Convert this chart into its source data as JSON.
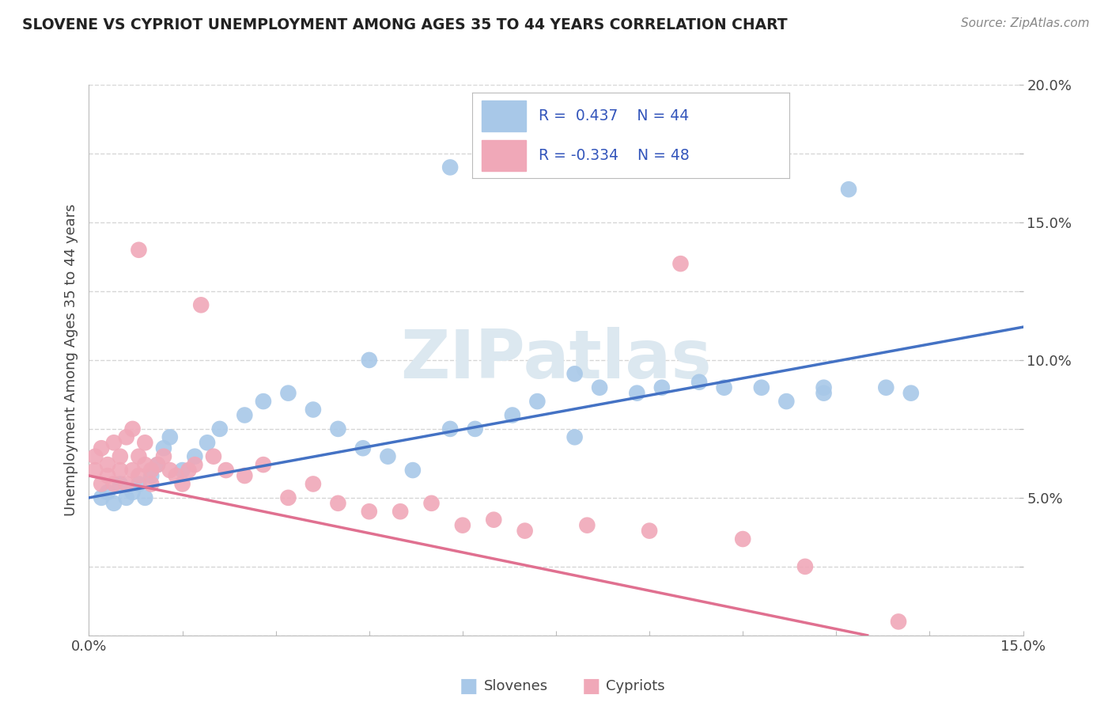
{
  "title": "SLOVENE VS CYPRIOT UNEMPLOYMENT AMONG AGES 35 TO 44 YEARS CORRELATION CHART",
  "source": "Source: ZipAtlas.com",
  "xlabel": "",
  "ylabel": "Unemployment Among Ages 35 to 44 years",
  "xlim": [
    0.0,
    0.15
  ],
  "ylim": [
    0.0,
    0.2
  ],
  "xticks": [
    0.0,
    0.015,
    0.03,
    0.045,
    0.06,
    0.075,
    0.09,
    0.105,
    0.12,
    0.135,
    0.15
  ],
  "xtick_labels": [
    "0.0%",
    "",
    "",
    "",
    "",
    "",
    "",
    "",
    "",
    "",
    "15.0%"
  ],
  "yticks": [
    0.0,
    0.025,
    0.05,
    0.075,
    0.1,
    0.125,
    0.15,
    0.175,
    0.2
  ],
  "ytick_labels": [
    "",
    "",
    "5.0%",
    "",
    "10.0%",
    "",
    "15.0%",
    "",
    "20.0%"
  ],
  "slovene_R": 0.437,
  "slovene_N": 44,
  "cypriot_R": -0.334,
  "cypriot_N": 48,
  "slovene_color": "#a8c8e8",
  "cypriot_color": "#f0a8b8",
  "slovene_line_color": "#4472c4",
  "cypriot_line_color": "#e07090",
  "watermark_text": "ZIPatlas",
  "watermark_color": "#dce8f0",
  "slovenes_x": [
    0.002,
    0.003,
    0.004,
    0.005,
    0.006,
    0.007,
    0.008,
    0.009,
    0.01,
    0.011,
    0.012,
    0.013,
    0.015,
    0.017,
    0.019,
    0.021,
    0.025,
    0.028,
    0.032,
    0.036,
    0.04,
    0.044,
    0.048,
    0.052,
    0.058,
    0.062,
    0.068,
    0.072,
    0.078,
    0.082,
    0.088,
    0.092,
    0.098,
    0.102,
    0.108,
    0.112,
    0.118,
    0.122,
    0.128,
    0.132,
    0.058,
    0.118,
    0.045,
    0.078
  ],
  "slovenes_y": [
    0.05,
    0.052,
    0.048,
    0.055,
    0.05,
    0.052,
    0.055,
    0.05,
    0.058,
    0.062,
    0.068,
    0.072,
    0.06,
    0.065,
    0.07,
    0.075,
    0.08,
    0.085,
    0.088,
    0.082,
    0.075,
    0.068,
    0.065,
    0.06,
    0.17,
    0.075,
    0.08,
    0.085,
    0.072,
    0.09,
    0.088,
    0.09,
    0.092,
    0.09,
    0.09,
    0.085,
    0.088,
    0.162,
    0.09,
    0.088,
    0.075,
    0.09,
    0.1,
    0.095
  ],
  "cypriots_x": [
    0.001,
    0.001,
    0.002,
    0.002,
    0.003,
    0.003,
    0.004,
    0.004,
    0.005,
    0.005,
    0.006,
    0.006,
    0.007,
    0.007,
    0.008,
    0.008,
    0.009,
    0.009,
    0.01,
    0.01,
    0.011,
    0.012,
    0.013,
    0.014,
    0.015,
    0.016,
    0.017,
    0.018,
    0.02,
    0.022,
    0.025,
    0.028,
    0.032,
    0.036,
    0.04,
    0.045,
    0.05,
    0.055,
    0.06,
    0.065,
    0.07,
    0.08,
    0.09,
    0.095,
    0.105,
    0.115,
    0.13,
    0.008
  ],
  "cypriots_y": [
    0.06,
    0.065,
    0.055,
    0.068,
    0.058,
    0.062,
    0.055,
    0.07,
    0.06,
    0.065,
    0.055,
    0.072,
    0.06,
    0.075,
    0.058,
    0.065,
    0.062,
    0.07,
    0.055,
    0.06,
    0.062,
    0.065,
    0.06,
    0.058,
    0.055,
    0.06,
    0.062,
    0.12,
    0.065,
    0.06,
    0.058,
    0.062,
    0.05,
    0.055,
    0.048,
    0.045,
    0.045,
    0.048,
    0.04,
    0.042,
    0.038,
    0.04,
    0.038,
    0.135,
    0.035,
    0.025,
    0.005,
    0.14
  ],
  "slovene_line_x": [
    0.0,
    0.15
  ],
  "slovene_line_y": [
    0.05,
    0.112
  ],
  "cypriot_line_x": [
    0.0,
    0.125
  ],
  "cypriot_line_y": [
    0.058,
    0.0
  ]
}
